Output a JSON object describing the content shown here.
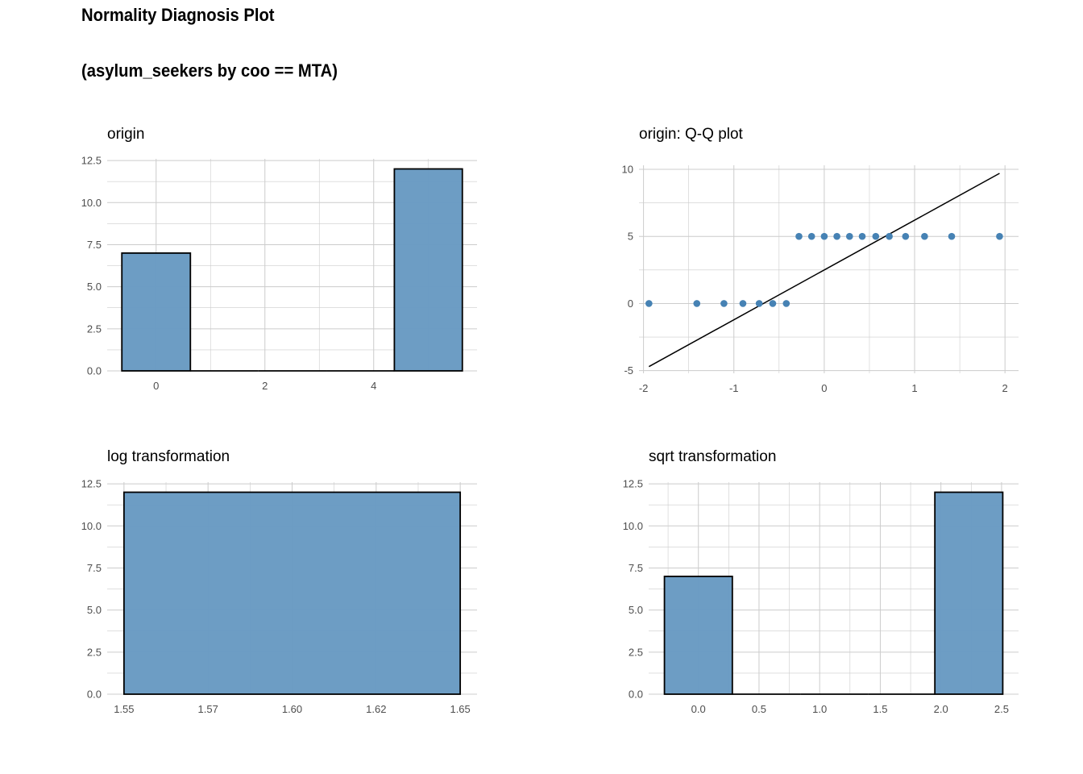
{
  "figure": {
    "title": "Normality Diagnosis Plot",
    "subtitle": "(asylum_seekers by coo == MTA)"
  },
  "colors": {
    "bar_fill": "#6a9bc3",
    "bar_stroke": "#000000",
    "point": "#4682b4",
    "grid": "#cccccc"
  },
  "chart_data": [
    {
      "id": "origin",
      "type": "bar",
      "title": "origin",
      "bins": [
        {
          "x0": -0.63,
          "x1": 0.63,
          "value": 7
        },
        {
          "x0": 0.63,
          "x1": 1.88,
          "value": 0
        },
        {
          "x0": 1.88,
          "x1": 3.13,
          "value": 0
        },
        {
          "x0": 3.13,
          "x1": 4.38,
          "value": 0
        },
        {
          "x0": 4.38,
          "x1": 5.63,
          "value": 12
        }
      ],
      "xlim": [
        -0.9,
        5.9
      ],
      "ylim": [
        0,
        12.6
      ],
      "xticks": [
        0,
        2,
        4
      ],
      "xtick_labels": [
        "0",
        "2",
        "4"
      ],
      "yticks": [
        0,
        2.5,
        5,
        7.5,
        10,
        12.5
      ],
      "ytick_labels": [
        "0.0",
        "2.5",
        "5.0",
        "7.5",
        "10.0",
        "12.5"
      ],
      "grid": true
    },
    {
      "id": "qq",
      "type": "scatter",
      "title": "origin: Q-Q plot",
      "points": [
        [
          -1.94,
          0
        ],
        [
          -1.41,
          0
        ],
        [
          -1.11,
          0
        ],
        [
          -0.9,
          0
        ],
        [
          -0.72,
          0
        ],
        [
          -0.57,
          0
        ],
        [
          -0.42,
          0
        ],
        [
          -0.28,
          5
        ],
        [
          -0.14,
          5
        ],
        [
          0,
          5
        ],
        [
          0.14,
          5
        ],
        [
          0.28,
          5
        ],
        [
          0.42,
          5
        ],
        [
          0.57,
          5
        ],
        [
          0.72,
          5
        ],
        [
          0.9,
          5
        ],
        [
          1.11,
          5
        ],
        [
          1.41,
          5
        ],
        [
          1.94,
          5
        ]
      ],
      "line": [
        [
          -1.94,
          -4.7
        ],
        [
          1.94,
          9.7
        ]
      ],
      "xlim": [
        -2.05,
        2.15
      ],
      "ylim": [
        -5.2,
        10.3
      ],
      "xticks": [
        -2,
        -1,
        0,
        1,
        2
      ],
      "xtick_labels": [
        "-2",
        "-1",
        "0",
        "1",
        "2"
      ],
      "yticks": [
        -5,
        0,
        5,
        10
      ],
      "ytick_labels": [
        "-5",
        "0",
        "5",
        "10"
      ],
      "grid": true
    },
    {
      "id": "log",
      "type": "bar",
      "title": "log transformation",
      "bins": [
        {
          "x0": 1.55,
          "x1": 1.65,
          "value": 12
        }
      ],
      "xlim": [
        1.545,
        1.655
      ],
      "ylim": [
        0,
        12.6
      ],
      "xticks": [
        1.55,
        1.575,
        1.6,
        1.625,
        1.65
      ],
      "xtick_labels": [
        "1.55",
        "1.57",
        "1.60",
        "1.62",
        "1.65"
      ],
      "yticks": [
        0,
        2.5,
        5,
        7.5,
        10,
        12.5
      ],
      "ytick_labels": [
        "0.0",
        "2.5",
        "5.0",
        "7.5",
        "10.0",
        "12.5"
      ],
      "grid": true
    },
    {
      "id": "sqrt",
      "type": "bar",
      "title": "sqrt transformation",
      "bins": [
        {
          "x0": -0.28,
          "x1": 0.28,
          "value": 7
        },
        {
          "x0": 0.28,
          "x1": 0.84,
          "value": 0
        },
        {
          "x0": 0.84,
          "x1": 1.4,
          "value": 0
        },
        {
          "x0": 1.4,
          "x1": 1.95,
          "value": 0
        },
        {
          "x0": 1.95,
          "x1": 2.51,
          "value": 12
        }
      ],
      "xlim": [
        -0.41,
        2.64
      ],
      "ylim": [
        0,
        12.6
      ],
      "xticks": [
        0,
        0.5,
        1,
        1.5,
        2,
        2.5
      ],
      "xtick_labels": [
        "0.0",
        "0.5",
        "1.0",
        "1.5",
        "2.0",
        "2.5"
      ],
      "yticks": [
        0,
        2.5,
        5,
        7.5,
        10,
        12.5
      ],
      "ytick_labels": [
        "0.0",
        "2.5",
        "5.0",
        "7.5",
        "10.0",
        "12.5"
      ],
      "grid": true
    }
  ]
}
